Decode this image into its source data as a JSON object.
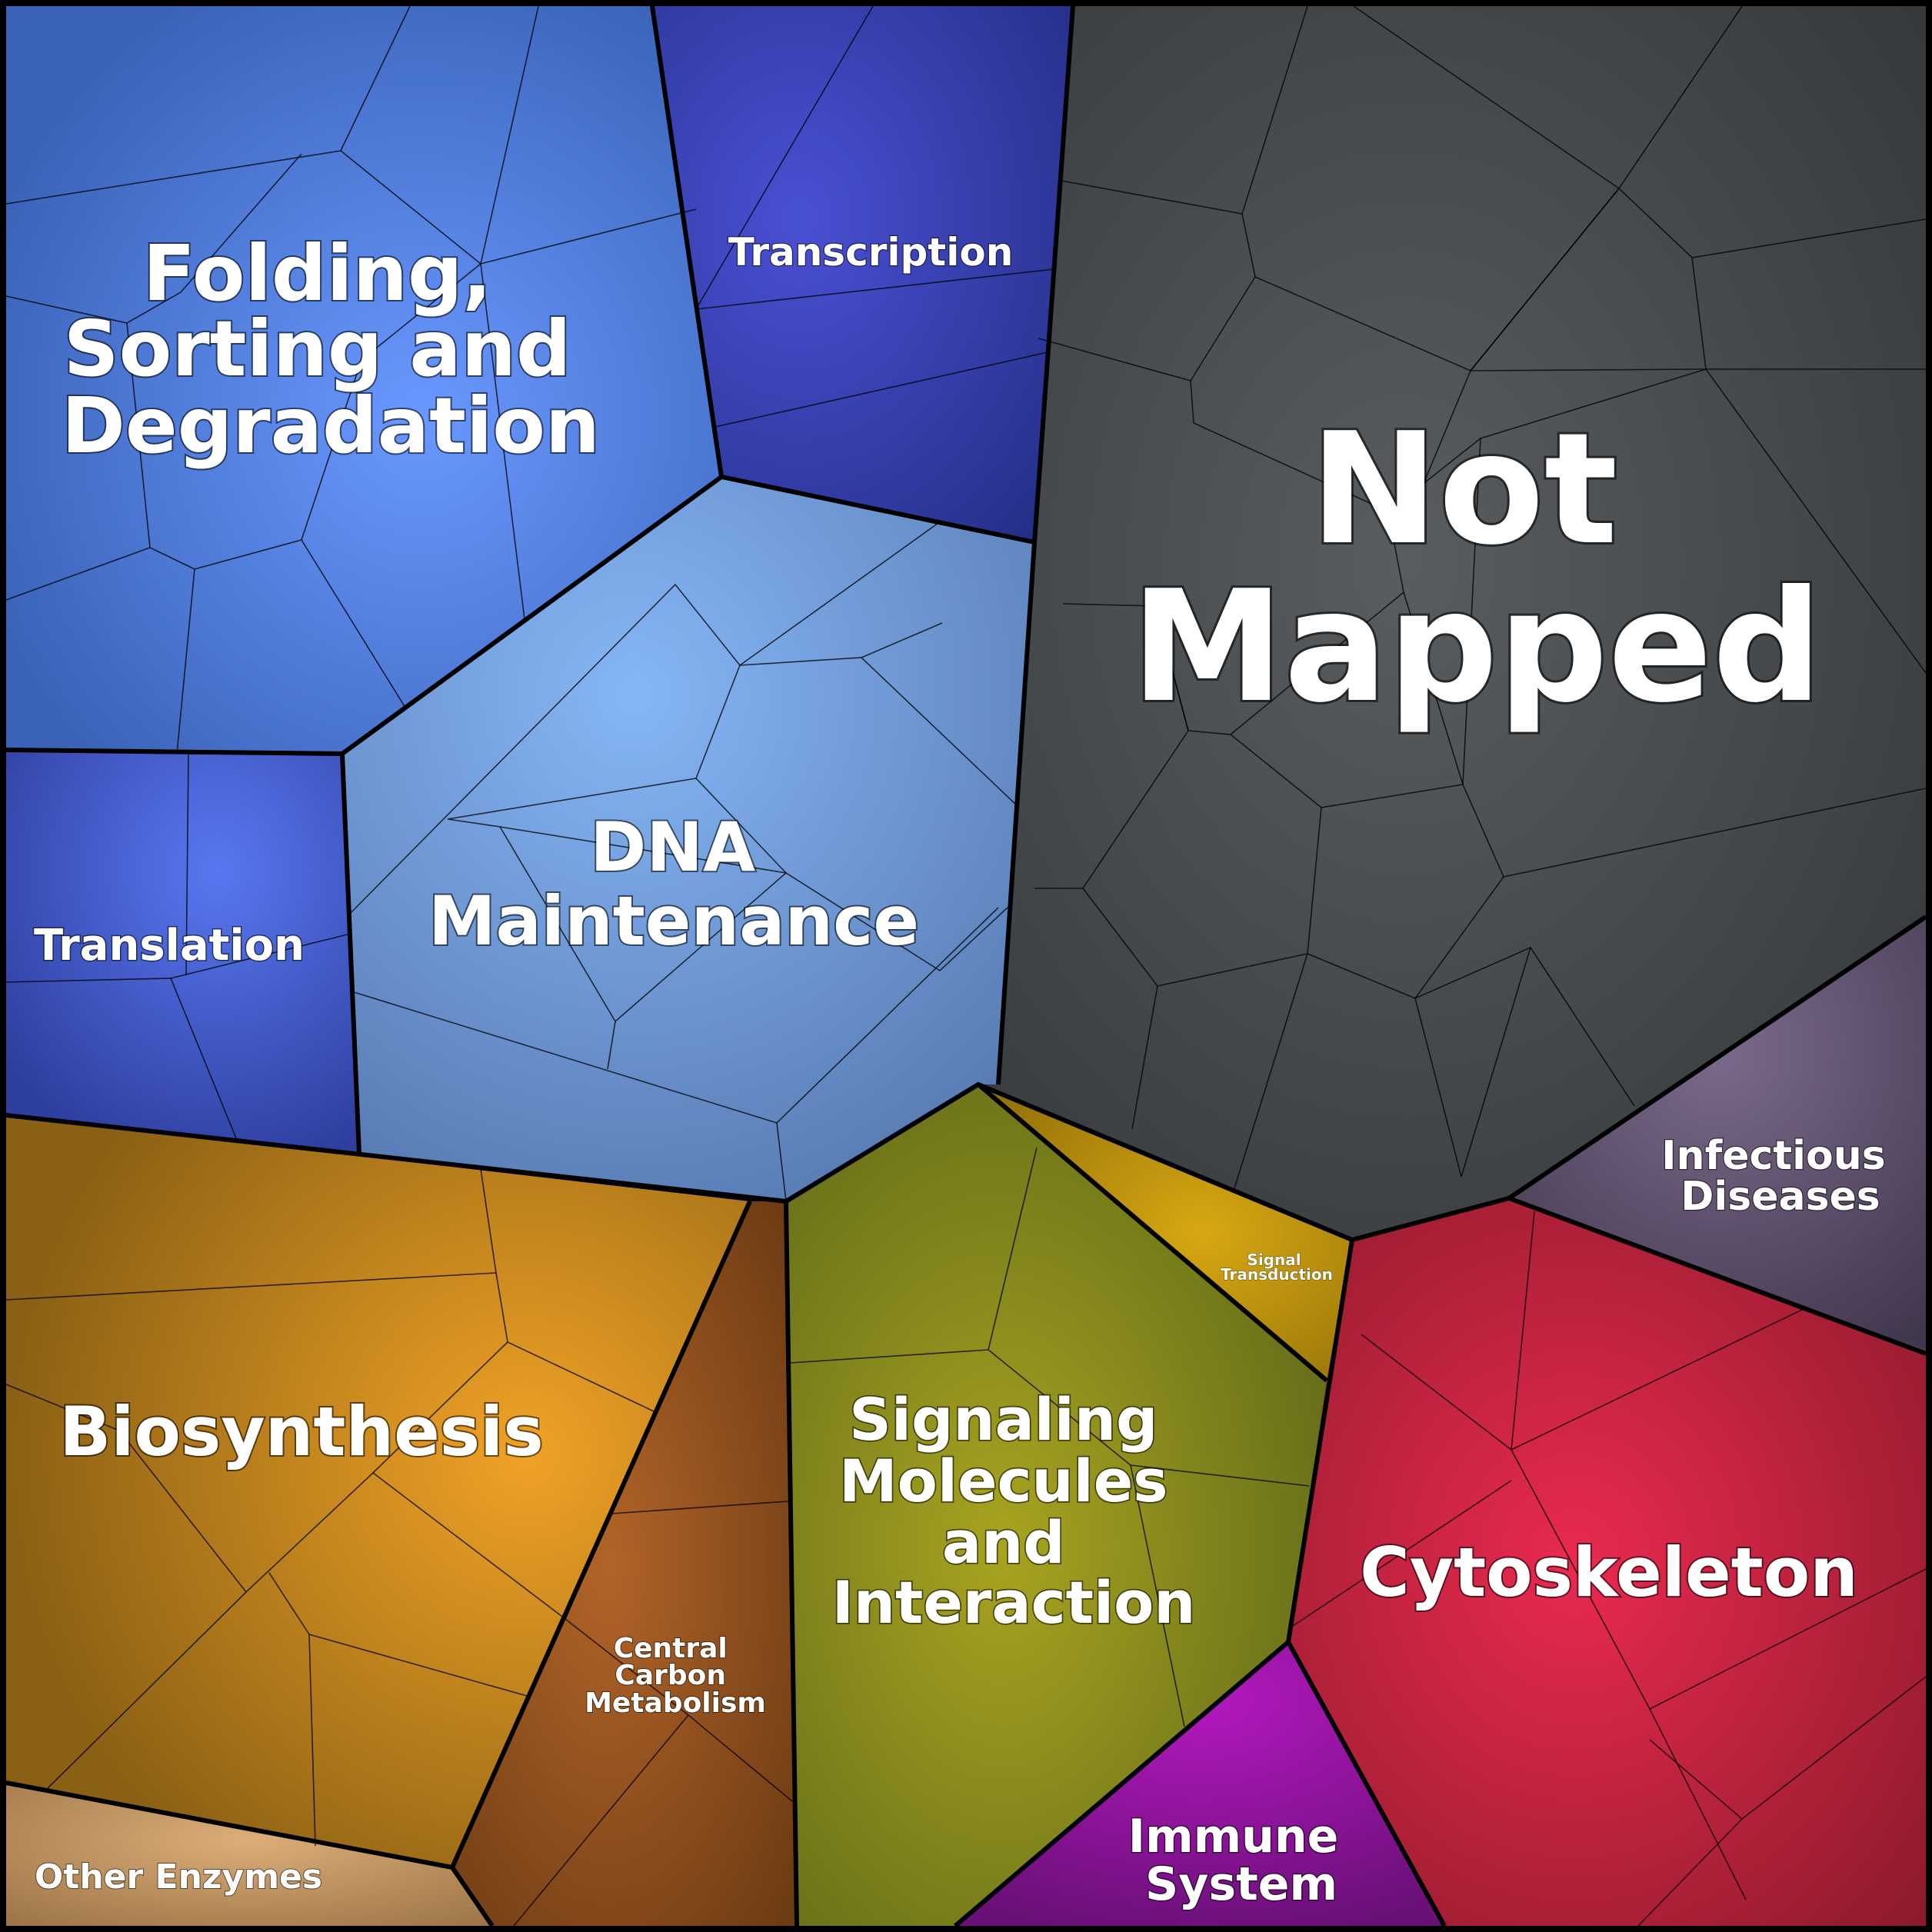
{
  "diagram": {
    "kind": "voronoi-treemap",
    "categories": [
      {
        "id": "folding",
        "label_lines": [
          "Folding,",
          "Sorting and",
          "Degradation"
        ],
        "color": "#5b86e8"
      },
      {
        "id": "transcription",
        "label_lines": [
          "Transcription"
        ],
        "color": "#3340a8"
      },
      {
        "id": "translation",
        "label_lines": [
          "Translation"
        ],
        "color": "#4a60d8"
      },
      {
        "id": "dna",
        "label_lines": [
          "DNA",
          "Maintenance"
        ],
        "color": "#7aa6e6"
      },
      {
        "id": "notmapped",
        "label_lines": [
          "Not",
          "Mapped"
        ],
        "color": "#4a4d50"
      },
      {
        "id": "infectious",
        "label_lines": [
          "Infectious",
          "Diseases"
        ],
        "color": "#6a5a78"
      },
      {
        "id": "biosynthesis",
        "label_lines": [
          "Biosynthesis"
        ],
        "color": "#d99a1e"
      },
      {
        "id": "central",
        "label_lines": [
          "Central",
          "Carbon",
          "Metabolism"
        ],
        "color": "#a65a20"
      },
      {
        "id": "other",
        "label_lines": [
          "Other Enzymes"
        ],
        "color": "#c89a66"
      },
      {
        "id": "signaling",
        "label_lines": [
          "Signaling",
          "Molecules",
          "and",
          "Interaction"
        ],
        "color": "#8f9a22"
      },
      {
        "id": "signaltrans",
        "label_lines": [
          "Signal",
          "Transduction"
        ],
        "color": "#c89a12"
      },
      {
        "id": "immune",
        "label_lines": [
          "Immune",
          "System"
        ],
        "color": "#a81ab0"
      },
      {
        "id": "cytoskeleton",
        "label_lines": [
          "Cytoskeleton"
        ],
        "color": "#d42a48"
      }
    ]
  }
}
